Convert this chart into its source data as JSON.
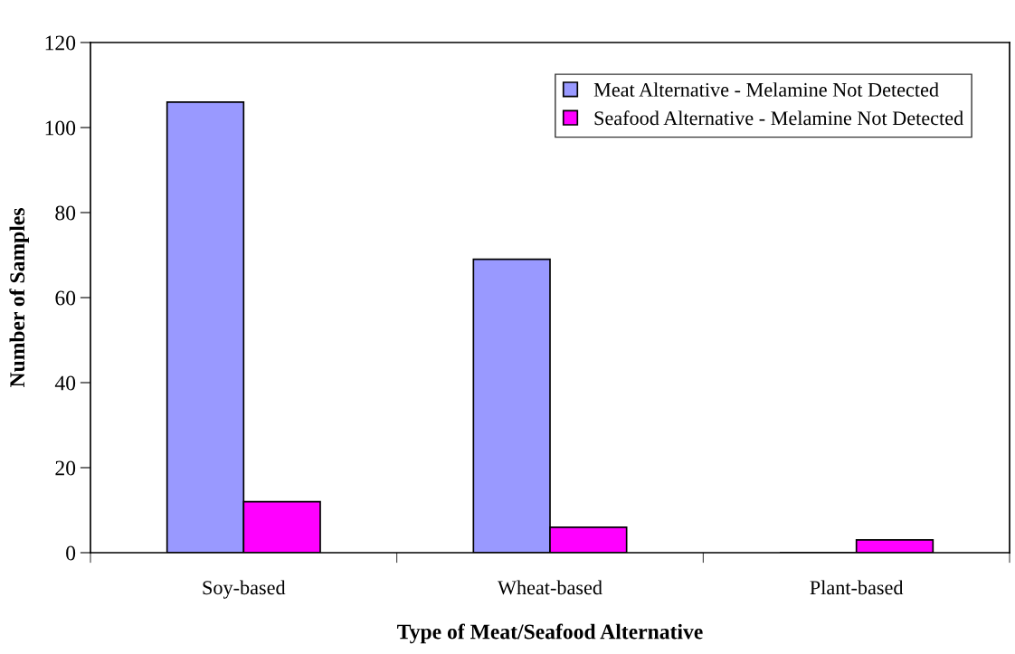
{
  "chart_data": {
    "type": "bar",
    "xlabel": "Type of Meat/Seafood Alternative",
    "ylabel": "Number of Samples",
    "categories": [
      "Soy-based",
      "Wheat-based",
      "Plant-based"
    ],
    "series": [
      {
        "name": "Meat Alternative - Melamine Not Detected",
        "color": "#9999ff",
        "values": [
          106,
          69,
          0
        ]
      },
      {
        "name": "Seafood Alternative - Melamine Not Detected",
        "color": "#ff00ff",
        "values": [
          12,
          6,
          3
        ]
      }
    ],
    "ylim": [
      0,
      120
    ],
    "yticks": [
      0,
      20,
      40,
      60,
      80,
      100,
      120
    ],
    "grid": false,
    "legend": "top right"
  }
}
